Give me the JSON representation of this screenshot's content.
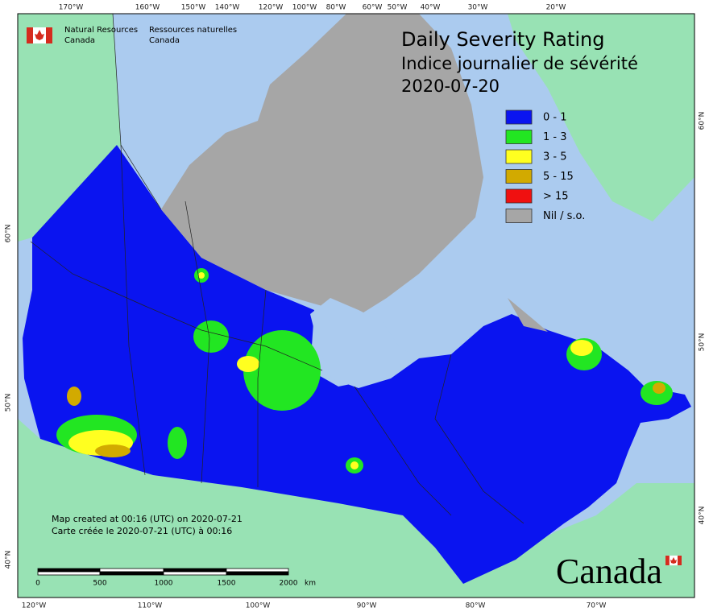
{
  "header": {
    "title": "Daily Severity Rating",
    "subtitle": "Indice journalier de sévérité",
    "date": "2020-07-20"
  },
  "agency": {
    "en": [
      "Natural Resources",
      "Canada"
    ],
    "fr": [
      "Ressources naturelles",
      "Canada"
    ]
  },
  "legend": [
    {
      "label": "0 - 1",
      "color": "#0a14f0"
    },
    {
      "label": "1 - 3",
      "color": "#22e622"
    },
    {
      "label": "3 - 5",
      "color": "#ffff20"
    },
    {
      "label": "5 - 15",
      "color": "#d2aa00"
    },
    {
      "label": "> 15",
      "color": "#f01010"
    },
    {
      "label": "Nil / s.o.",
      "color": "#a6a6a6"
    }
  ],
  "credits": [
    "Map created at 00:16 (UTC) on 2020-07-21",
    "Carte créée le 2020-07-21 (UTC) à 00:16"
  ],
  "scale": {
    "labels": [
      "0",
      "500",
      "1000",
      "1500",
      "2000"
    ],
    "unit": "km"
  },
  "graticule": {
    "top": [
      "170°W",
      "160°W",
      "150°W",
      "140°W",
      "120°W",
      "100°W",
      "80°W",
      "60°W",
      "50°W",
      "40°W",
      "30°W",
      "20°W"
    ],
    "bottom": [
      "120°W",
      "110°W",
      "100°W",
      "90°W",
      "80°W",
      "70°W"
    ],
    "left": [
      "60°N",
      "50°N",
      "40°N"
    ],
    "right": [
      "60°N",
      "50°N",
      "40°N"
    ]
  },
  "wordmark": "Canada"
}
